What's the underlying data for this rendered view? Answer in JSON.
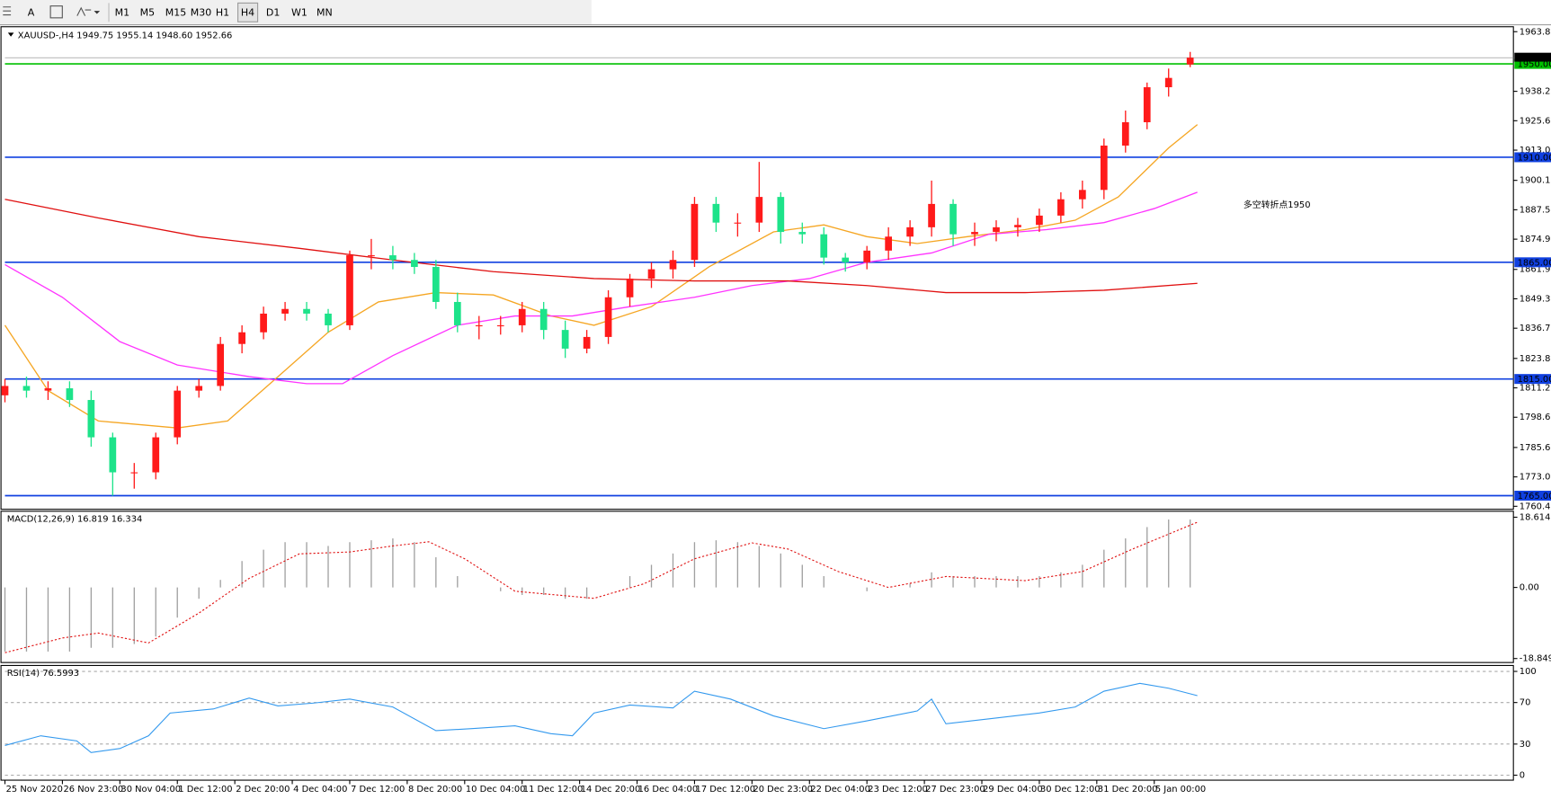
{
  "toolbar": {
    "buttons": [
      "A"
    ],
    "timeframes": [
      "M1",
      "M5",
      "M15",
      "M30",
      "H1",
      "H4",
      "D1",
      "W1",
      "MN"
    ],
    "active": "H4"
  },
  "chart_data": [
    {
      "type": "candlestick",
      "title": "XAUUSD-,H4  1949.75 1955.14 1948.60 1952.66",
      "annotation": "多空转折点1950",
      "annotation_color": "#ff2020",
      "xlim": [
        0,
        210
      ],
      "ylim": [
        1759.18,
        1965.92
      ],
      "yticks": [
        {
          "value": 1963.8,
          "label": "1963.80"
        },
        1938.25,
        1925.65,
        1913.05,
        {
          "value": 1900.1,
          "label": "1900.10"
        },
        {
          "value": 1887.5,
          "label": "1887.50"
        },
        {
          "value": 1874.9,
          "label": "1874.90"
        },
        1861.95,
        1849.35,
        1836.75,
        {
          "value": 1823.8,
          "label": "1823.80"
        },
        {
          "value": 1811.2,
          "label": "1811.20"
        },
        {
          "value": 1798.6,
          "label": "1798.60"
        },
        1785.65,
        1773.05,
        1760.45
      ],
      "up_color": "#ff1a1a",
      "down_color": "#1de38a",
      "x": [
        0,
        3,
        6,
        9,
        12,
        15,
        18,
        21,
        24,
        27,
        30,
        33,
        36,
        39,
        42,
        45,
        48,
        51,
        54,
        57,
        60,
        63,
        66,
        69,
        72,
        75,
        78,
        81,
        84,
        87,
        90,
        93,
        96,
        99,
        102,
        105,
        108,
        111,
        114,
        117,
        120,
        123,
        126,
        129,
        132,
        135,
        138,
        141,
        144,
        147,
        150,
        153,
        156,
        159,
        162,
        165
      ],
      "open": [
        1808,
        1812,
        1810,
        1811,
        1806,
        1790,
        1775,
        1775,
        1790,
        1810,
        1812,
        1830,
        1835,
        1843,
        1845,
        1843,
        1838,
        1868,
        1868,
        1866,
        1863,
        1848,
        1838,
        1838,
        1838,
        1845,
        1836,
        1828,
        1833,
        1850,
        1858,
        1862,
        1866,
        1890,
        1882,
        1882,
        1893,
        1878,
        1877,
        1867,
        1865,
        1870,
        1876,
        1880,
        1890,
        1877,
        1878,
        1880,
        1881,
        1885,
        1892,
        1896,
        1915,
        1925,
        1940,
        1949.75
      ],
      "high": [
        1815,
        1816,
        1814,
        1814,
        1810,
        1792,
        1779,
        1792,
        1812,
        1815,
        1833,
        1838,
        1846,
        1848,
        1848,
        1845,
        1870,
        1875,
        1872,
        1869,
        1866,
        1852,
        1842,
        1842,
        1848,
        1848,
        1840,
        1836,
        1853,
        1860,
        1865,
        1870,
        1893,
        1893,
        1886,
        1908,
        1895,
        1882,
        1880,
        1869,
        1872,
        1880,
        1883,
        1900,
        1892,
        1882,
        1883,
        1884,
        1888,
        1895,
        1900,
        1918,
        1930,
        1942,
        1948,
        1955.14
      ],
      "low": [
        1805,
        1807,
        1806,
        1803,
        1786,
        1765,
        1768,
        1772,
        1787,
        1807,
        1810,
        1826,
        1832,
        1840,
        1840,
        1835,
        1836,
        1862,
        1862,
        1860,
        1845,
        1835,
        1832,
        1834,
        1835,
        1832,
        1824,
        1826,
        1830,
        1846,
        1854,
        1858,
        1863,
        1878,
        1876,
        1878,
        1873,
        1873,
        1864,
        1861,
        1862,
        1866,
        1872,
        1876,
        1872,
        1872,
        1874,
        1876,
        1878,
        1882,
        1888,
        1892,
        1912,
        1922,
        1936,
        1948.6
      ],
      "close": [
        1812,
        1810,
        1811,
        1806,
        1790,
        1775,
        1775,
        1790,
        1810,
        1812,
        1830,
        1835,
        1843,
        1845,
        1843,
        1838,
        1868,
        1868,
        1866,
        1863,
        1848,
        1838,
        1838,
        1838,
        1845,
        1836,
        1828,
        1833,
        1850,
        1858,
        1862,
        1866,
        1890,
        1882,
        1882,
        1893,
        1878,
        1877,
        1867,
        1865,
        1870,
        1876,
        1880,
        1890,
        1877,
        1878,
        1880,
        1881,
        1885,
        1892,
        1896,
        1915,
        1925,
        1940,
        1944,
        1952.66
      ],
      "lines": [
        {
          "color": "#f5a623",
          "x": [
            0,
            6,
            13,
            24,
            31,
            38,
            45,
            52,
            60,
            68,
            76,
            82,
            90,
            98,
            107,
            114,
            120,
            127,
            134,
            142,
            149,
            155,
            162,
            166
          ],
          "values": [
            1838,
            1810,
            1797,
            1794,
            1797,
            1816,
            1835,
            1848,
            1852,
            1851,
            1842,
            1838,
            1846,
            1863,
            1878,
            1881,
            1876,
            1873,
            1876,
            1879,
            1883,
            1893,
            1914,
            1924
          ]
        },
        {
          "color": "#ff33ff",
          "x": [
            0,
            8,
            16,
            24,
            34,
            42,
            47,
            54,
            63,
            71,
            79,
            87,
            96,
            104,
            112,
            120,
            129,
            137,
            145,
            153,
            160,
            166
          ],
          "values": [
            1864,
            1850,
            1831,
            1821,
            1816,
            1813,
            1813,
            1825,
            1838,
            1842,
            1842,
            1846,
            1850,
            1855,
            1858,
            1865,
            1869,
            1877,
            1879,
            1882,
            1888,
            1895
          ]
        },
        {
          "color": "#e01010",
          "x": [
            0,
            13,
            27,
            41,
            54,
            68,
            82,
            96,
            109,
            120,
            131,
            142,
            153,
            166
          ],
          "values": [
            1892,
            1884,
            1876,
            1871,
            1866,
            1861,
            1858,
            1857,
            1857,
            1855,
            1852,
            1852,
            1853,
            1856
          ]
        }
      ],
      "levels": [
        {
          "value": 1950,
          "label": "1950.00",
          "color": "#00c000"
        },
        {
          "value": 1910,
          "label": "1910.00",
          "color": "#1040e0"
        },
        {
          "value": 1865,
          "label": "1865.00",
          "color": "#1040e0"
        },
        {
          "value": 1815,
          "label": "1815.00",
          "color": "#1040e0"
        },
        {
          "value": 1765,
          "label": "1765.00",
          "color": "#1040e0"
        }
      ],
      "bid": {
        "value": 1952.66,
        "label": "1952.66"
      }
    },
    {
      "type": "macd",
      "title": "MACD(12,26,9) 16.819 16.334",
      "xlim": [
        0,
        210
      ],
      "ylim": [
        -19.9,
        20.2
      ],
      "yticks": [
        18.614,
        {
          "value": 0,
          "label": "0.00"
        },
        -18.849
      ],
      "histogram": {
        "color": "#a0a0a0",
        "x": [
          0,
          3,
          6,
          9,
          12,
          15,
          18,
          21,
          24,
          27,
          30,
          33,
          36,
          39,
          42,
          45,
          48,
          51,
          54,
          57,
          60,
          63,
          66,
          69,
          72,
          75,
          78,
          81,
          84,
          87,
          90,
          93,
          96,
          99,
          102,
          105,
          108,
          111,
          114,
          117,
          120,
          123,
          126,
          129,
          132,
          135,
          138,
          141,
          144,
          147,
          150,
          153,
          156,
          159,
          162,
          165
        ],
        "values": [
          -17,
          -17,
          -17,
          -17,
          -16,
          -16,
          -15,
          -13,
          -8,
          -3,
          2,
          7,
          10,
          12,
          12,
          11,
          12,
          12.5,
          13,
          12,
          8,
          3,
          0,
          -1,
          -2,
          -2,
          -3,
          -3,
          0,
          3,
          6,
          9,
          12,
          12.5,
          12,
          11,
          9,
          6,
          3,
          0,
          -1,
          0,
          1,
          4,
          3,
          3,
          3,
          3,
          3,
          4,
          6,
          10,
          13,
          16,
          18,
          18
        ]
      },
      "signal": {
        "color": "#e01010",
        "x": [
          0,
          8,
          13,
          20,
          27,
          34,
          41,
          48,
          54,
          59,
          64,
          71,
          82,
          89,
          96,
          104,
          109,
          116,
          123,
          131,
          142,
          150,
          157,
          166
        ],
        "values": [
          -17.3,
          -13.4,
          -12.1,
          -14.7,
          -6.8,
          2.4,
          8.9,
          9.4,
          11,
          12.1,
          7.6,
          -1,
          -2.9,
          1,
          7.6,
          11.8,
          10.2,
          4.2,
          0,
          2.9,
          1.8,
          4.2,
          10.2,
          17.3
        ]
      }
    },
    {
      "type": "line",
      "title": "RSI(14) 76.5993",
      "color": "#3399ee",
      "grid": true,
      "xlim": [
        0,
        210
      ],
      "ylim": [
        -4.8,
        105.7
      ],
      "yticks": [
        100,
        70,
        30,
        0
      ],
      "x": [
        0,
        5,
        10,
        12,
        16,
        20,
        23,
        29,
        34,
        38,
        43,
        48,
        54,
        60,
        65,
        71,
        76,
        79,
        82,
        87,
        93,
        96,
        101,
        107,
        114,
        120,
        127,
        129,
        131,
        137,
        144,
        149,
        153,
        158,
        162,
        166
      ],
      "values": [
        28.6,
        38,
        33,
        21.9,
        25.7,
        38,
        59.9,
        63.8,
        74.3,
        66.7,
        69.5,
        73.3,
        65.7,
        42.9,
        44.8,
        47.6,
        40,
        38,
        59.9,
        67.6,
        64.8,
        80.9,
        73.3,
        57.1,
        44.8,
        52.4,
        61.9,
        73.3,
        49.5,
        54.3,
        59.9,
        65.7,
        80.9,
        88.5,
        83.8,
        76.6
      ],
      "xticks": [
        {
          "value": 0,
          "label": "25 Nov 2020"
        },
        {
          "value": 8,
          "label": "26 Nov 23:00"
        },
        {
          "value": 16,
          "label": "30 Nov 04:00"
        },
        {
          "value": 24,
          "label": "1 Dec 12:00"
        },
        {
          "value": 32,
          "label": "2 Dec 20:00"
        },
        {
          "value": 40,
          "label": "4 Dec 04:00"
        },
        {
          "value": 48,
          "label": "7 Dec 12:00"
        },
        {
          "value": 56,
          "label": "8 Dec 20:00"
        },
        {
          "value": 64,
          "label": "10 Dec 04:00"
        },
        {
          "value": 72,
          "label": "11 Dec 12:00"
        },
        {
          "value": 80,
          "label": "14 Dec 20:00"
        },
        {
          "value": 88,
          "label": "16 Dec 04:00"
        },
        {
          "value": 96,
          "label": "17 Dec 12:00"
        },
        {
          "value": 104,
          "label": "20 Dec 23:00"
        },
        {
          "value": 112,
          "label": "22 Dec 04:00"
        },
        {
          "value": 120,
          "label": "23 Dec 12:00"
        },
        {
          "value": 128,
          "label": "27 Dec 23:00"
        },
        {
          "value": 136,
          "label": "29 Dec 04:00"
        },
        {
          "value": 144,
          "label": "30 Dec 12:00"
        },
        {
          "value": 152,
          "label": "31 Dec 20:00"
        },
        {
          "value": 160,
          "label": "5 Jan 00:00"
        }
      ]
    }
  ]
}
